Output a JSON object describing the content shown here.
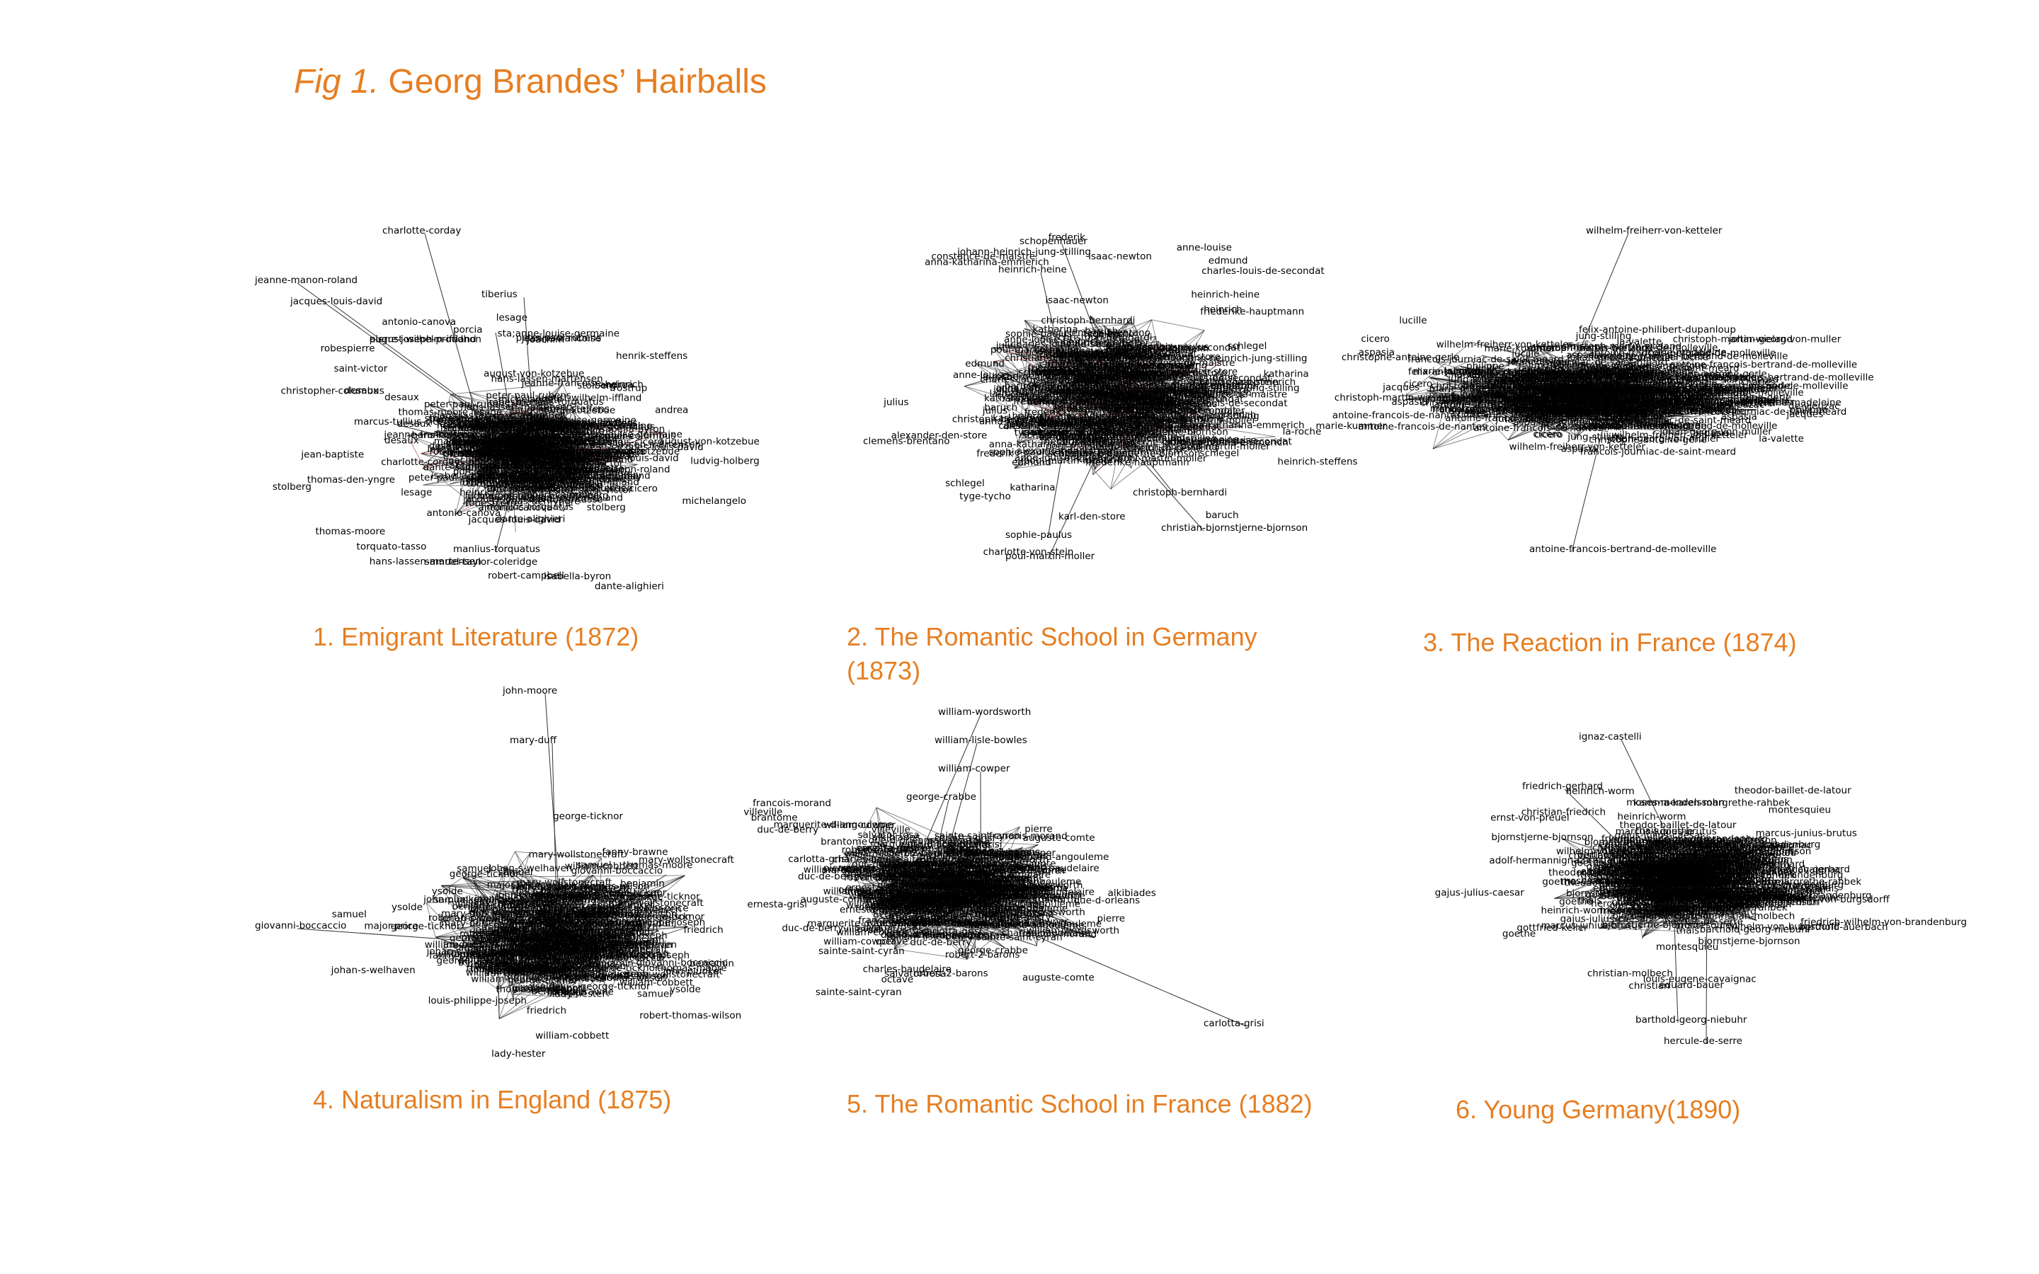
{
  "figure": {
    "title_prefix": "Fig 1.",
    "title_main": "Georg Brandes’ Hairballs",
    "accent_color": "#e67e22"
  },
  "panels": [
    {
      "caption": "1. Emigrant Literature (1872)",
      "labels": [
        "charlotte-corday",
        "jacques-louis-david",
        "jeanne-manon-roland",
        "tiberius",
        "porcia",
        "nero",
        "marcus-tullius-cicero",
        "manlius-torquatus",
        "august-von-kotzebue",
        "samuel-taylor-coleridge",
        "august-wilhelm-iffland",
        "robert-campbell",
        "christopher-columbus",
        "torquato-tasso",
        "pierre-joseph-proudhon",
        "jean-baptiste",
        "sta;anne-louise-germaine",
        "jeanne-francoise",
        "joachim",
        "michelangelo",
        "thomas-moore",
        "dante-alighieri",
        "ludvig-holberg",
        "hans-lassen-martensen",
        "peter-paul-rubens",
        "antonio-canova",
        "andrea",
        "heinrich",
        "henrik-steffens",
        "stolberg",
        "isabella-byron",
        "thomas-den-yngre",
        "saint-victor",
        "robespierre",
        "desaux",
        "lesage",
        "frostrup"
      ]
    },
    {
      "caption": "2. The Romantic School in Germany (1873)",
      "labels": [
        "schopenhauer",
        "heinrich-heine",
        "sophie-paulus",
        "poul-martin-moller",
        "christoph-bernhardi",
        "christian-bjornstjerne-bjornson",
        "baruch",
        "frederik",
        "heinrich",
        "tyge-tycho",
        "julius",
        "katharina",
        "anne-louise",
        "edmund",
        "heinrich-steffens",
        "friederike-hauptmann",
        "charles-louis-de-secondat",
        "johann-heinrich-jung-stilling",
        "charlotte-von-stein",
        "isaac-newton",
        "clemens-brentano",
        "anna-katharina-emmerich",
        "constance-de-maistre",
        "alexander-den-store",
        "la-roche",
        "schlegel",
        "karl-den-store"
      ]
    },
    {
      "caption": "3. The Reaction in France (1874)",
      "labels": [
        "wilhelm-freiherr-von-ketteler",
        "felix-antoine-philibert-dupanloup",
        "antoine-francois-bertrand-de-molleville",
        "christoph-martin-wieland",
        "antoine-francois-de-nantes",
        "johan-georg-von-muller",
        "marie-kummer",
        "jung-stilling",
        "lucille",
        "marie-madeleine",
        "christophe-antoine-gerle",
        "francois-journiac-de-saint-meard",
        "la-valette",
        "de-vieuzac",
        "aspasia",
        "cicero",
        "philippe",
        "charles",
        "jacques"
      ]
    },
    {
      "caption": "4. Naturalism in England (1875)",
      "labels": [
        "john-moore",
        "mary-duff",
        "giovanni-boccaccio",
        "ysolde",
        "johan-s-welhaven",
        "george-ticknor",
        "benjamin",
        "louis-philippe-joseph",
        "mary-wollstonecraft",
        "lady-hester",
        "friedrich",
        "william-cobbett",
        "robert-thomas-wilson",
        "john-plunket",
        "fanny-brawne",
        "major-price",
        "thomas-moore",
        "samuel"
      ]
    },
    {
      "caption": "5. The Romantic School in France (1882)",
      "labels": [
        "william-wordsworth",
        "william-lisle-bowles",
        "william-cowper",
        "george-crabbe",
        "carlotta-grisi",
        "francois-morand",
        "ernesta-grisi",
        "auguste-comte",
        "sainte-saint-cyran",
        "robert-2-barons",
        "due-d-orleans",
        "duc-de-berry",
        "marguerite-d-angouleme",
        "brantome",
        "charles-baudelaire",
        "salvator-rosa",
        "octave",
        "pierre",
        "alkibiades",
        "villeville"
      ]
    },
    {
      "caption": "6. Young Germany(1890)",
      "labels": [
        "ignaz-castelli",
        "friedrich-gerhard",
        "barthold-georg-niebuhr",
        "hercule-de-serre",
        "adolf-hermann",
        "marcus-junius-brutus",
        "gajus-julius-caesar",
        "friedrich-wilhelm-von-brandenburg",
        "ernst-von-preuel",
        "heinrich-worm",
        "theodor-baillet-de-latour",
        "louis-eugene-cavaignac",
        "christian",
        "christian-friedrich",
        "eduard-bauer",
        "montesquieu",
        "goethe",
        "thais",
        "moses-mendelssohn",
        "berthold-auerbach",
        "wilhelm-von-burgsdorff",
        "bjornstjerne-bjornson",
        "gottfried-keller",
        "christian-molbech",
        "kamma-karen-margrethe-rahbek"
      ]
    }
  ]
}
